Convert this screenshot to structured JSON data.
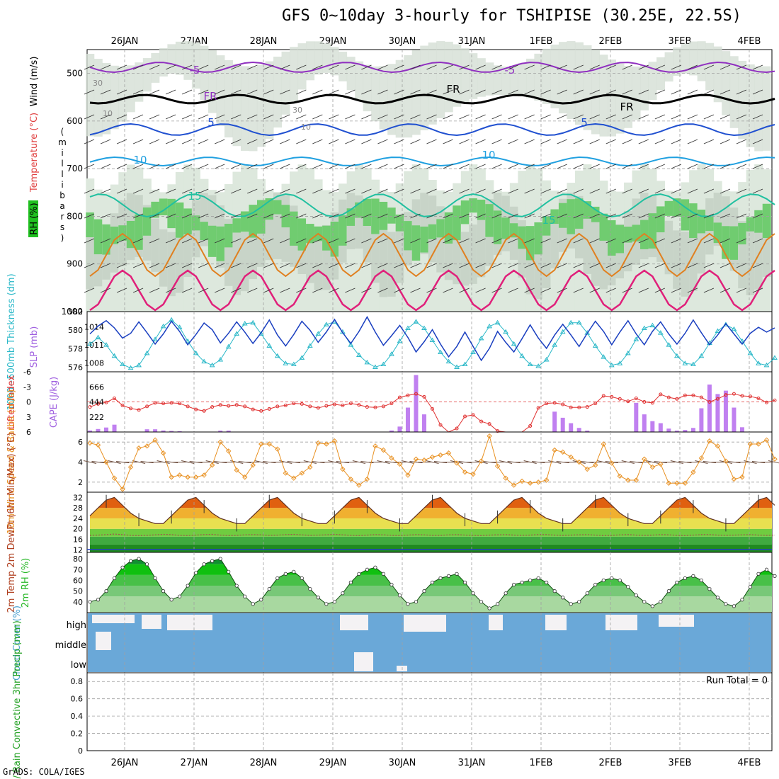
{
  "title": "GFS 0~10day 3-hourly for TSHIPISE (30.25E, 22.5S)",
  "credit": "GrADS: COLA/IGES",
  "dates": [
    "26JAN",
    "27JAN",
    "28JAN",
    "29JAN",
    "30JAN",
    "31JAN",
    "1FEB",
    "2FEB",
    "3FEB",
    "4FEB"
  ],
  "colors": {
    "thickness": "#2ab8c8",
    "slp": "#1a3fc0",
    "lifted": "#e03030",
    "cape": "#c080f0",
    "speed": "#e89020",
    "barb": "#705040",
    "rh": "#28b828",
    "cloud": "#6aa8d8",
    "grid": "#a0a0a0"
  },
  "chart_data": [
    {
      "type": "heatmap",
      "name": "upper-air",
      "ylabel": "(millibars)",
      "ylabel_chars": [
        "(",
        "m",
        "i",
        "l",
        "l",
        "i",
        "b",
        "a",
        "r",
        "s",
        ")"
      ],
      "left_labels": {
        "wind": "Wind (m/s)",
        "temp": "Temperature (°C)",
        "rh": "RH (%)"
      },
      "ylim": [
        1000,
        450
      ],
      "yticks": [
        500,
        600,
        700,
        800,
        900,
        1000
      ],
      "temperature_levels": [
        "-5",
        "FR",
        "5",
        "10",
        "15"
      ],
      "contour_labels": [
        "-5",
        "-5",
        "FR",
        "FR",
        "FR",
        "5",
        "5",
        "10",
        "10",
        "15",
        "15",
        "30",
        "30",
        "10",
        "10"
      ]
    },
    {
      "type": "line",
      "name": "thickness-slp",
      "left_label": "1000~500mb Thickness (dm)",
      "right_label": "SLP (mb)",
      "left_ticks": [
        "576",
        "578",
        "580",
        "582"
      ],
      "right_ticks": [
        "1008",
        "1011",
        "1014"
      ],
      "left_ylim": [
        575.5,
        582
      ],
      "right_ylim": [
        1006.5,
        1016.5
      ],
      "series": [
        {
          "name": "1000~500mb Thickness",
          "axis": "left",
          "values": [
            578.5,
            579.2,
            578.4,
            577.2,
            576.3,
            575.9,
            576.2,
            577.5,
            579.0,
            580.4,
            581.1,
            580.3,
            578.8,
            577.5,
            576.6,
            576.2,
            576.8,
            578.2,
            579.6,
            580.7,
            580.8,
            579.6,
            578.3,
            577.2,
            576.4,
            576.3,
            577.0,
            578.3,
            579.6,
            580.6,
            580.9,
            579.8,
            578.4,
            577.3,
            576.5,
            576.0,
            576.3,
            577.4,
            578.8,
            580.2,
            580.9,
            580.2,
            578.9,
            577.6,
            576.6,
            576.0,
            576.3,
            577.6,
            579.1,
            580.4,
            580.8,
            579.8,
            578.5,
            577.2,
            576.3,
            576.1,
            576.8,
            578.4,
            579.8,
            580.8,
            580.8,
            579.7,
            578.3,
            577.1,
            576.2,
            576.4,
            577.5,
            579.0,
            580.2,
            580.5,
            579.7,
            578.4,
            577.2,
            576.4,
            576.3,
            577.2,
            578.6,
            579.9,
            580.6,
            580.1,
            578.8,
            577.5,
            576.4,
            576.2,
            577.0
          ]
        },
        {
          "name": "SLP",
          "axis": "right",
          "values": [
            1012.8,
            1014.1,
            1015.0,
            1013.8,
            1012.1,
            1012.9,
            1014.8,
            1013.0,
            1011.1,
            1012.8,
            1014.9,
            1013.2,
            1011.0,
            1012.7,
            1014.6,
            1013.5,
            1011.3,
            1012.9,
            1014.8,
            1013.1,
            1011.2,
            1013.0,
            1015.1,
            1012.6,
            1010.8,
            1012.7,
            1014.9,
            1013.4,
            1011.4,
            1013.1,
            1015.2,
            1013.0,
            1011.2,
            1013.2,
            1015.6,
            1013.1,
            1010.9,
            1012.5,
            1014.2,
            1012.2,
            1009.8,
            1011.5,
            1013.5,
            1011.1,
            1009.0,
            1010.7,
            1013.1,
            1010.7,
            1008.4,
            1010.4,
            1013.2,
            1011.4,
            1009.8,
            1012.0,
            1014.3,
            1012.1,
            1010.4,
            1012.6,
            1014.4,
            1012.6,
            1010.7,
            1012.9,
            1014.9,
            1013.2,
            1011.0,
            1013.1,
            1015.0,
            1012.8,
            1011.0,
            1013.2,
            1014.8,
            1012.8,
            1011.1,
            1012.9,
            1015.1,
            1013.0,
            1011.0,
            1012.6,
            1014.5,
            1012.8,
            1011.1,
            1012.9,
            1013.9,
            1013.1,
            1013.8
          ]
        }
      ]
    },
    {
      "type": "bar",
      "name": "lifted-index-cape",
      "left_label": "Lifted Index",
      "right_label": "CAPE (J/kg)",
      "left_ticks": [
        "-6",
        "-3",
        "0",
        "3",
        "6"
      ],
      "right_ticks": [
        "222",
        "444",
        "666"
      ],
      "left_ylim": [
        6,
        -6
      ],
      "right_ylim": [
        0,
        888
      ],
      "series": [
        {
          "name": "Lifted Index",
          "axis": "left",
          "values": [
            1.0,
            0.4,
            0.1,
            -0.7,
            0.7,
            1.3,
            1.6,
            0.9,
            0.2,
            0.3,
            0.2,
            0.3,
            0.9,
            1.5,
            1.8,
            1.0,
            0.6,
            0.8,
            0.6,
            0.9,
            1.5,
            1.8,
            1.4,
            0.9,
            0.7,
            0.3,
            0.4,
            0.9,
            1.2,
            0.8,
            0.5,
            0.7,
            0.3,
            0.6,
            1.0,
            1.1,
            0.9,
            0.3,
            -0.9,
            -1.3,
            -1.6,
            -1.0,
            1.4,
            4.6,
            6.2,
            5.3,
            2.9,
            2.6,
            3.9,
            4.4,
            5.8,
            7.0,
            6.7,
            6.9,
            4.8,
            1.2,
            0.3,
            0.2,
            0.5,
            1.1,
            1.1,
            1.0,
            0.3,
            -1.2,
            -1.0,
            -0.6,
            -0.1,
            -0.7,
            0.0,
            0.2,
            -1.5,
            -0.9,
            -0.6,
            -1.3,
            -1.3,
            -0.9,
            0.0,
            -0.6,
            -1.4,
            -1.6,
            -1.2,
            -1.1,
            -0.7,
            0.1,
            -0.3
          ]
        },
        {
          "name": "CAPE",
          "axis": "right",
          "values": [
            22,
            44,
            66,
            108,
            0,
            0,
            0,
            40,
            40,
            22,
            16,
            12,
            0,
            0,
            0,
            0,
            20,
            20,
            0,
            0,
            0,
            0,
            0,
            0,
            0,
            0,
            0,
            0,
            0,
            0,
            0,
            0,
            0,
            0,
            0,
            0,
            0,
            22,
            80,
            360,
            840,
            260,
            0,
            0,
            0,
            0,
            0,
            0,
            0,
            0,
            0,
            0,
            0,
            0,
            0,
            0,
            0,
            300,
            210,
            130,
            60,
            20,
            0,
            0,
            0,
            0,
            0,
            430,
            260,
            160,
            130,
            50,
            20,
            30,
            60,
            350,
            700,
            560,
            610,
            360,
            70,
            0,
            0,
            0,
            0
          ]
        }
      ]
    },
    {
      "type": "line",
      "name": "wind-speed",
      "left_label": "10m Wind Speed & Barbs (m/s)",
      "yticks": [
        "2",
        "4",
        "6"
      ],
      "ylim": [
        1,
        7
      ],
      "series": [
        {
          "name": "10m Wind Speed",
          "values": [
            5.9,
            5.7,
            4.0,
            2.4,
            1.3,
            3.5,
            5.4,
            5.6,
            6.2,
            4.9,
            2.5,
            2.7,
            2.5,
            2.5,
            2.7,
            3.7,
            6.0,
            5.1,
            3.2,
            2.5,
            3.7,
            5.8,
            5.8,
            5.3,
            2.9,
            2.4,
            2.9,
            3.5,
            5.9,
            5.8,
            6.1,
            3.3,
            2.3,
            1.7,
            2.3,
            5.6,
            5.2,
            4.4,
            3.8,
            2.7,
            4.3,
            4.2,
            4.5,
            4.7,
            4.9,
            3.9,
            3.0,
            2.8,
            4.1,
            6.6,
            3.6,
            2.4,
            1.7,
            2.1,
            1.9,
            2.0,
            2.2,
            5.2,
            5.0,
            4.5,
            4.0,
            3.3,
            3.7,
            5.8,
            3.9,
            2.6,
            2.2,
            2.2,
            4.3,
            3.5,
            3.8,
            1.9,
            1.9,
            1.9,
            3.0,
            4.4,
            6.1,
            5.6,
            4.1,
            2.3,
            2.5,
            5.8,
            5.8,
            6.2,
            4.3
          ]
        }
      ]
    },
    {
      "type": "area",
      "name": "2m-temperature",
      "left_label": "2m Temp 2m DewPt (6hr Min/Max) (°C)",
      "yticks": [
        "12",
        "16",
        "20",
        "24",
        "28",
        "32"
      ],
      "ylim": [
        11,
        34
      ],
      "series": [
        {
          "name": "2m Temp",
          "values": [
            25,
            28,
            31,
            32,
            29,
            26,
            24,
            23,
            22,
            22,
            25,
            28,
            31,
            32,
            29,
            26,
            24,
            23,
            22,
            22,
            25,
            28,
            31,
            32,
            29,
            26,
            24,
            23,
            22,
            22,
            25,
            28,
            31,
            32,
            29,
            26,
            24,
            23,
            22,
            22,
            25,
            28,
            31,
            32,
            29,
            26,
            24,
            23,
            22,
            22,
            25,
            28,
            31,
            32,
            29,
            26,
            24,
            23,
            22,
            22,
            25,
            28,
            31,
            32,
            29,
            26,
            24,
            23,
            22,
            22,
            25,
            28,
            31,
            32,
            29,
            26,
            24,
            23,
            22,
            22,
            25,
            28,
            31,
            32,
            29
          ]
        },
        {
          "name": "2m DewPt",
          "values": [
            17.5,
            17.6,
            17.8,
            18.0,
            17.8,
            17.5,
            17.4,
            17.5,
            17.7,
            17.9,
            17.8,
            17.5,
            17.4,
            17.6,
            17.8,
            17.9,
            17.6,
            17.4,
            17.5,
            17.7,
            17.8,
            17.7,
            17.5,
            17.6,
            17.8,
            17.9,
            17.7,
            17.5,
            17.6,
            17.7,
            17.9,
            17.7,
            17.5,
            17.4,
            17.6,
            17.8,
            17.7,
            17.5,
            17.4,
            17.6,
            17.8,
            17.7,
            17.5,
            17.5,
            17.7,
            17.8,
            17.6,
            17.5,
            17.4,
            17.6,
            17.7,
            17.8,
            17.6,
            17.5,
            17.6,
            17.8,
            17.8,
            17.6,
            17.5,
            17.6,
            17.7,
            17.8,
            17.6,
            17.4,
            17.5,
            17.7,
            17.8,
            17.6,
            17.5,
            17.6,
            17.8,
            17.7,
            17.5,
            17.4,
            17.6,
            17.8,
            17.8,
            17.6,
            17.5,
            17.6,
            17.7,
            17.8,
            17.6,
            17.5,
            17.6
          ]
        }
      ]
    },
    {
      "type": "area",
      "name": "2m-rh",
      "left_label": "2m RH (%)",
      "yticks": [
        "40",
        "50",
        "60",
        "70",
        "80"
      ],
      "ylim": [
        30,
        86
      ],
      "series": [
        {
          "name": "2m RH",
          "values": [
            40,
            42,
            50,
            62,
            72,
            78,
            80,
            75,
            62,
            50,
            42,
            45,
            55,
            67,
            75,
            78,
            80,
            68,
            55,
            45,
            38,
            42,
            52,
            62,
            66,
            68,
            62,
            52,
            44,
            38,
            40,
            48,
            58,
            66,
            70,
            72,
            66,
            56,
            46,
            38,
            40,
            50,
            58,
            62,
            64,
            66,
            58,
            48,
            40,
            34,
            38,
            48,
            56,
            58,
            60,
            62,
            58,
            50,
            44,
            38,
            40,
            48,
            56,
            60,
            62,
            60,
            54,
            46,
            40,
            36,
            40,
            50,
            58,
            62,
            64,
            60,
            52,
            44,
            38,
            36,
            42,
            54,
            66,
            70,
            64
          ]
        }
      ]
    },
    {
      "type": "heatmap",
      "name": "cloud-cover",
      "left_label": "Cloud Cover (%)",
      "rows": [
        "high",
        "middle",
        "low"
      ]
    },
    {
      "type": "bar",
      "name": "precipitation",
      "left_label": "Total / Rain Convective 3hr Precip (mm)",
      "yticks": [
        "0",
        "0.2",
        "0.4",
        "0.6",
        "0.8"
      ],
      "ylim": [
        0,
        0.9
      ],
      "run_total": "Run Total = 0",
      "values": []
    }
  ]
}
